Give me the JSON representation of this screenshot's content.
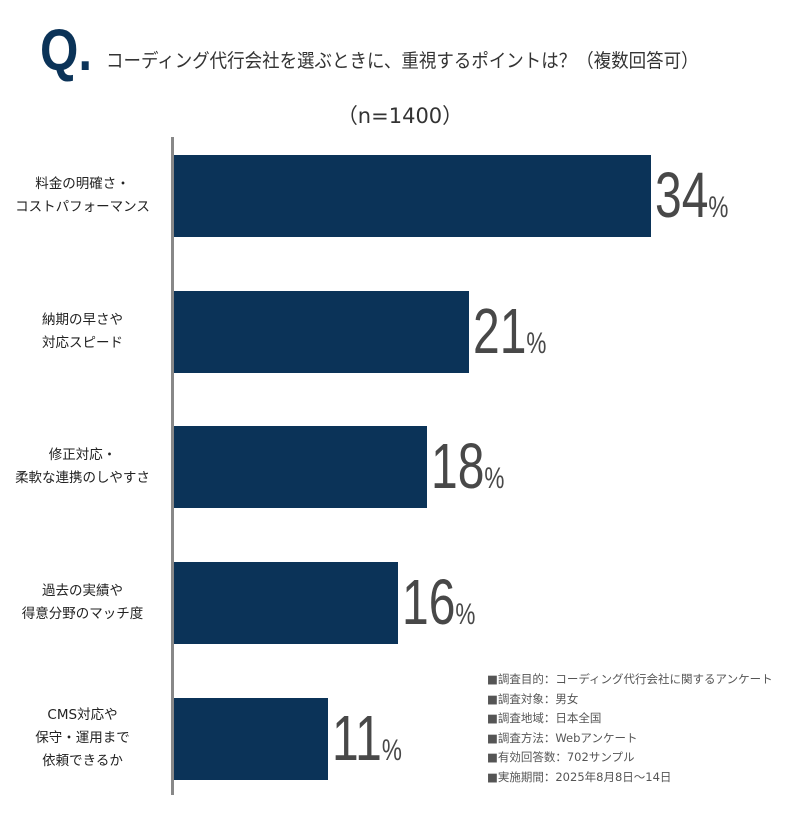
{
  "chart_data": {
    "type": "bar",
    "orientation": "horizontal",
    "title": "コーディング代行会社を選ぶときに、重視するポイントは？（複数回答可）",
    "title_prefix": "Q.",
    "subtitle": "（n=1400）",
    "categories": [
      "料金の明確さ・\nコストパフォーマンス",
      "納期の早さや\n対応スピード",
      "修正対応・\n柔軟な連携のしやすさ",
      "過去の実績や\n得意分野のマッチ度",
      "CMS対応や\n保守・運用まで\n依頼できるか"
    ],
    "values": [
      34,
      21,
      18,
      16,
      11
    ],
    "unit": "%",
    "bar_color": "#0b3358",
    "label_color": "#484848",
    "grid": false
  },
  "notes": [
    "■調査目的：コーディング代行会社に関するアンケート",
    "■調査対象：男女",
    "■調査地域：日本全国",
    "■調査方法：Webアンケート",
    "■有効回答数：702サンプル",
    "■実施期間：2025年8月8日〜14日"
  ]
}
